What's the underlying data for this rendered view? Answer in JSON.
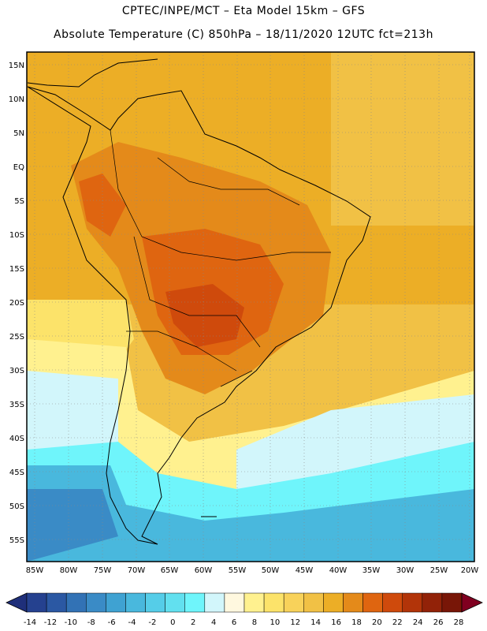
{
  "title": {
    "line1": "CPTEC/INPE/MCT –  Eta Model 15km – GFS",
    "line2": "Absolute Temperature (C) 850hPa – 18/11/2020 12UTC fct=213h"
  },
  "map": {
    "lat_labels": [
      "15N",
      "10N",
      "5N",
      "EQ",
      "5S",
      "10S",
      "15S",
      "20S",
      "25S",
      "30S",
      "35S",
      "40S",
      "45S",
      "50S",
      "55S"
    ],
    "lon_labels": [
      "85W",
      "80W",
      "75W",
      "70W",
      "65W",
      "60W",
      "55W",
      "50W",
      "45W",
      "40W",
      "35W",
      "30W",
      "25W",
      "20W"
    ]
  },
  "colorbar": {
    "labels": [
      "-14",
      "-12",
      "-10",
      "-8",
      "-6",
      "-4",
      "-2",
      "0",
      "2",
      "4",
      "6",
      "8",
      "10",
      "12",
      "14",
      "16",
      "18",
      "20",
      "22",
      "24",
      "26",
      "28"
    ],
    "colors": [
      "#25418f",
      "#2b58a3",
      "#3272b5",
      "#3a8bc6",
      "#3fa2d2",
      "#49b8dd",
      "#55cde8",
      "#62e0ef",
      "#6ff5fb",
      "#d2f6fb",
      "#fff8df",
      "#fff18f",
      "#fce36a",
      "#f8d25a",
      "#f1c145",
      "#ecae26",
      "#e48a1a",
      "#df6510",
      "#cf4a0c",
      "#b23409",
      "#922208",
      "#781607",
      "#800020"
    ],
    "low_color": "#1f2f7a",
    "high_color": "#800020"
  }
}
